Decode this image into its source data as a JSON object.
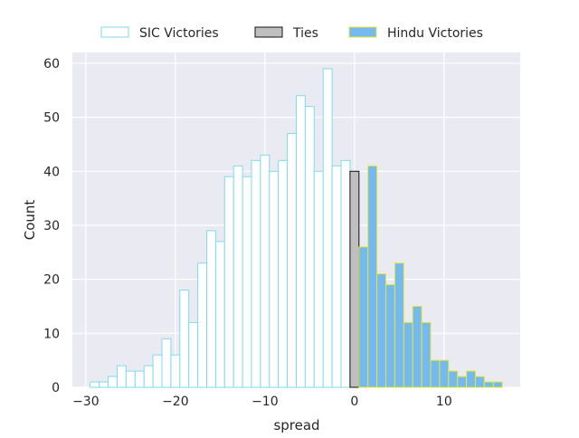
{
  "chart_data": {
    "type": "bar",
    "xlabel": "spread",
    "ylabel": "Count",
    "xlim": [
      -31.5,
      18.5
    ],
    "ylim": [
      0,
      62
    ],
    "xticks": [
      -30,
      -20,
      -10,
      0,
      10
    ],
    "yticks": [
      0,
      10,
      20,
      30,
      40,
      50,
      60
    ],
    "grid": true,
    "legend_position": "top-center",
    "bin_width": 1,
    "series": [
      {
        "name": "SIC Victories",
        "fill": "#ffffff",
        "edge": "#7fdbea",
        "bins": [
          {
            "x": -29,
            "y": 1
          },
          {
            "x": -28,
            "y": 1
          },
          {
            "x": -27,
            "y": 2
          },
          {
            "x": -26,
            "y": 4
          },
          {
            "x": -25,
            "y": 3
          },
          {
            "x": -24,
            "y": 3
          },
          {
            "x": -23,
            "y": 4
          },
          {
            "x": -22,
            "y": 6
          },
          {
            "x": -21,
            "y": 9
          },
          {
            "x": -20,
            "y": 6
          },
          {
            "x": -19,
            "y": 18
          },
          {
            "x": -18,
            "y": 12
          },
          {
            "x": -17,
            "y": 23
          },
          {
            "x": -16,
            "y": 29
          },
          {
            "x": -15,
            "y": 27
          },
          {
            "x": -14,
            "y": 39
          },
          {
            "x": -13,
            "y": 41
          },
          {
            "x": -12,
            "y": 39
          },
          {
            "x": -11,
            "y": 42
          },
          {
            "x": -10,
            "y": 43
          },
          {
            "x": -9,
            "y": 40
          },
          {
            "x": -8,
            "y": 42
          },
          {
            "x": -7,
            "y": 47
          },
          {
            "x": -6,
            "y": 54
          },
          {
            "x": -5,
            "y": 52
          },
          {
            "x": -4,
            "y": 40
          },
          {
            "x": -3,
            "y": 59
          },
          {
            "x": -2,
            "y": 41
          },
          {
            "x": -1,
            "y": 42
          }
        ]
      },
      {
        "name": "Ties",
        "fill": "#bfbfbf",
        "edge": "#111111",
        "bins": [
          {
            "x": 0,
            "y": 40
          }
        ]
      },
      {
        "name": "Hindu Victories",
        "fill": "#74b9f0",
        "edge": "#e8e82a",
        "bins": [
          {
            "x": 1,
            "y": 26
          },
          {
            "x": 2,
            "y": 41
          },
          {
            "x": 3,
            "y": 21
          },
          {
            "x": 4,
            "y": 19
          },
          {
            "x": 5,
            "y": 23
          },
          {
            "x": 6,
            "y": 12
          },
          {
            "x": 7,
            "y": 15
          },
          {
            "x": 8,
            "y": 12
          },
          {
            "x": 9,
            "y": 5
          },
          {
            "x": 10,
            "y": 5
          },
          {
            "x": 11,
            "y": 3
          },
          {
            "x": 12,
            "y": 2
          },
          {
            "x": 13,
            "y": 3
          },
          {
            "x": 14,
            "y": 2
          },
          {
            "x": 15,
            "y": 1
          },
          {
            "x": 16,
            "y": 1
          }
        ]
      }
    ]
  }
}
